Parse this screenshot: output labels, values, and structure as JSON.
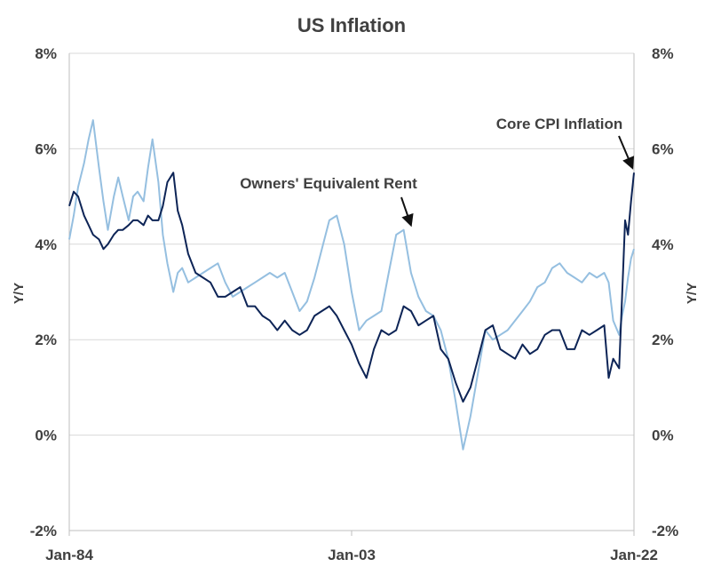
{
  "chart_data": {
    "type": "line",
    "title": "US Inflation",
    "ylabel_left": "Y/Y",
    "ylabel_right": "Y/Y",
    "ylim": [
      -2,
      8
    ],
    "yticks": [
      -2,
      0,
      2,
      4,
      6,
      8
    ],
    "ytick_labels": [
      "-2%",
      "0%",
      "2%",
      "4%",
      "6%",
      "8%"
    ],
    "xlim": [
      1984.0,
      2022.0
    ],
    "xticks": [
      1984.0,
      2003.0,
      2022.0
    ],
    "xtick_labels": [
      "Jan-84",
      "Jan-03",
      "Jan-22"
    ],
    "grid": true,
    "series": [
      {
        "name": "Core CPI Inflation",
        "color": "#0d2456",
        "x": [
          1984.0,
          1984.3,
          1984.6,
          1985.0,
          1985.3,
          1985.6,
          1986.0,
          1986.3,
          1986.6,
          1987.0,
          1987.3,
          1987.6,
          1988.0,
          1988.3,
          1988.6,
          1989.0,
          1989.3,
          1989.6,
          1990.0,
          1990.3,
          1990.6,
          1991.0,
          1991.3,
          1991.6,
          1992.0,
          1992.5,
          1993.0,
          1993.5,
          1994.0,
          1994.5,
          1995.0,
          1995.5,
          1996.0,
          1996.5,
          1997.0,
          1997.5,
          1998.0,
          1998.5,
          1999.0,
          1999.5,
          2000.0,
          2000.5,
          2001.0,
          2001.5,
          2002.0,
          2002.5,
          2003.0,
          2003.5,
          2004.0,
          2004.5,
          2005.0,
          2005.5,
          2006.0,
          2006.5,
          2007.0,
          2007.5,
          2008.0,
          2008.5,
          2009.0,
          2009.5,
          2010.0,
          2010.5,
          2011.0,
          2011.5,
          2012.0,
          2012.5,
          2013.0,
          2013.5,
          2014.0,
          2014.5,
          2015.0,
          2015.5,
          2016.0,
          2016.5,
          2017.0,
          2017.5,
          2018.0,
          2018.5,
          2019.0,
          2019.5,
          2020.0,
          2020.3,
          2020.6,
          2021.0,
          2021.2,
          2021.4,
          2021.6,
          2021.8,
          2022.0
        ],
        "y": [
          4.8,
          5.1,
          5.0,
          4.6,
          4.4,
          4.2,
          4.1,
          3.9,
          4.0,
          4.2,
          4.3,
          4.3,
          4.4,
          4.5,
          4.5,
          4.4,
          4.6,
          4.5,
          4.5,
          4.8,
          5.3,
          5.5,
          4.7,
          4.4,
          3.8,
          3.4,
          3.3,
          3.2,
          2.9,
          2.9,
          3.0,
          3.1,
          2.7,
          2.7,
          2.5,
          2.4,
          2.2,
          2.4,
          2.2,
          2.1,
          2.2,
          2.5,
          2.6,
          2.7,
          2.5,
          2.2,
          1.9,
          1.5,
          1.2,
          1.8,
          2.2,
          2.1,
          2.2,
          2.7,
          2.6,
          2.3,
          2.4,
          2.5,
          1.8,
          1.6,
          1.1,
          0.7,
          1.0,
          1.6,
          2.2,
          2.3,
          1.8,
          1.7,
          1.6,
          1.9,
          1.7,
          1.8,
          2.1,
          2.2,
          2.2,
          1.8,
          1.8,
          2.2,
          2.1,
          2.2,
          2.3,
          1.2,
          1.6,
          1.4,
          2.9,
          4.5,
          4.2,
          4.9,
          5.5
        ]
      },
      {
        "name": "Owners' Equivalent Rent",
        "color": "#95bfe0",
        "x": [
          1984.0,
          1984.3,
          1984.6,
          1985.0,
          1985.3,
          1985.6,
          1986.0,
          1986.3,
          1986.6,
          1987.0,
          1987.3,
          1987.6,
          1988.0,
          1988.3,
          1988.6,
          1989.0,
          1989.3,
          1989.6,
          1990.0,
          1990.3,
          1990.6,
          1991.0,
          1991.3,
          1991.6,
          1992.0,
          1992.5,
          1993.0,
          1993.5,
          1994.0,
          1994.5,
          1995.0,
          1995.5,
          1996.0,
          1996.5,
          1997.0,
          1997.5,
          1998.0,
          1998.5,
          1999.0,
          1999.5,
          2000.0,
          2000.5,
          2001.0,
          2001.5,
          2002.0,
          2002.5,
          2003.0,
          2003.5,
          2004.0,
          2004.5,
          2005.0,
          2005.5,
          2006.0,
          2006.5,
          2007.0,
          2007.5,
          2008.0,
          2008.5,
          2009.0,
          2009.5,
          2010.0,
          2010.5,
          2011.0,
          2011.5,
          2012.0,
          2012.5,
          2013.0,
          2013.5,
          2014.0,
          2014.5,
          2015.0,
          2015.5,
          2016.0,
          2016.5,
          2017.0,
          2017.5,
          2018.0,
          2018.5,
          2019.0,
          2019.5,
          2020.0,
          2020.3,
          2020.6,
          2021.0,
          2021.2,
          2021.4,
          2021.6,
          2021.8,
          2022.0
        ],
        "y": [
          4.1,
          4.6,
          5.2,
          5.7,
          6.2,
          6.6,
          5.6,
          4.9,
          4.3,
          5.0,
          5.4,
          5.0,
          4.5,
          5.0,
          5.1,
          4.9,
          5.6,
          6.2,
          5.3,
          4.2,
          3.6,
          3.0,
          3.4,
          3.5,
          3.2,
          3.3,
          3.4,
          3.5,
          3.6,
          3.2,
          2.9,
          3.0,
          3.1,
          3.2,
          3.3,
          3.4,
          3.3,
          3.4,
          3.0,
          2.6,
          2.8,
          3.3,
          3.9,
          4.5,
          4.6,
          4.0,
          3.0,
          2.2,
          2.4,
          2.5,
          2.6,
          3.4,
          4.2,
          4.3,
          3.4,
          2.9,
          2.6,
          2.5,
          2.2,
          1.6,
          0.7,
          -0.3,
          0.4,
          1.3,
          2.2,
          2.0,
          2.1,
          2.2,
          2.4,
          2.6,
          2.8,
          3.1,
          3.2,
          3.5,
          3.6,
          3.4,
          3.3,
          3.2,
          3.4,
          3.3,
          3.4,
          3.2,
          2.4,
          2.1,
          2.5,
          2.8,
          3.3,
          3.7,
          3.9
        ]
      }
    ],
    "annotations": [
      {
        "text": "Owners' Equivalent Rent",
        "target_x": 2007.1,
        "target_y": 4.3
      },
      {
        "text": "Core CPI Inflation",
        "target_x": 2022.0,
        "target_y": 5.5
      }
    ]
  }
}
